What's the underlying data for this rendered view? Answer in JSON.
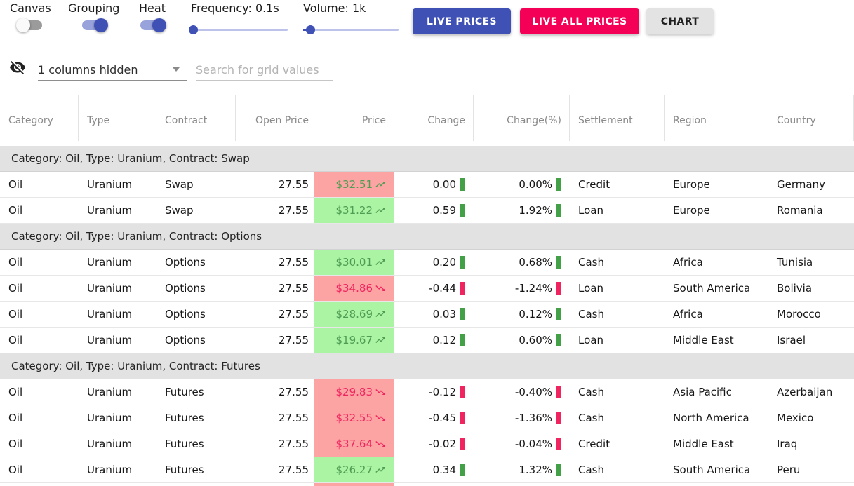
{
  "controls": {
    "toggles": [
      {
        "label": "Canvas",
        "on": false
      },
      {
        "label": "Grouping",
        "on": true
      },
      {
        "label": "Heat",
        "on": true
      }
    ],
    "sliders": [
      {
        "label": "Frequency: 0.1s",
        "percent": 2
      },
      {
        "label": "Volume: 1k",
        "percent": 7
      }
    ],
    "buttons": [
      {
        "label": "LIVE PRICES"
      },
      {
        "label": "LIVE ALL PRICES"
      },
      {
        "label": "CHART"
      }
    ]
  },
  "toolbar": {
    "hidden_columns_label": "1 columns hidden",
    "search_placeholder": "Search for grid values"
  },
  "colors": {
    "accent_primary": "#3f51b5",
    "accent_secondary": "#f50057",
    "heat_up_bg": "#aaf4a4",
    "heat_down_bg": "#fca3a3",
    "trend_up_text": "#4f9d53",
    "trend_down_text": "#f0245e",
    "bar_up": "#43a047",
    "bar_down": "#f0245e",
    "group_row_bg": "#e2e2e2"
  },
  "grid": {
    "columns": [
      {
        "label": "Category",
        "align": "left"
      },
      {
        "label": "Type",
        "align": "left"
      },
      {
        "label": "Contract",
        "align": "left"
      },
      {
        "label": "Open Price",
        "align": "right"
      },
      {
        "label": "Price",
        "align": "right"
      },
      {
        "label": "Change",
        "align": "right"
      },
      {
        "label": "Change(%)",
        "align": "right"
      },
      {
        "label": "Settlement",
        "align": "left"
      },
      {
        "label": "Region",
        "align": "left"
      },
      {
        "label": "Country",
        "align": "left"
      }
    ],
    "rows": [
      {
        "type": "group",
        "label": "Category: Oil, Type: Uranium, Contract: Swap"
      },
      {
        "type": "data",
        "category": "Oil",
        "commodity": "Uranium",
        "contract": "Swap",
        "open_price": "27.55",
        "price": "$32.51",
        "price_trend": "up",
        "price_heat": "red",
        "change": "0.00",
        "change_pct": "0.00%",
        "change_dir": "up",
        "settlement": "Credit",
        "region": "Europe",
        "country": "Germany"
      },
      {
        "type": "data",
        "category": "Oil",
        "commodity": "Uranium",
        "contract": "Swap",
        "open_price": "27.55",
        "price": "$31.22",
        "price_trend": "up",
        "price_heat": "green",
        "change": "0.59",
        "change_pct": "1.92%",
        "change_dir": "up",
        "settlement": "Loan",
        "region": "Europe",
        "country": "Romania"
      },
      {
        "type": "group",
        "label": "Category: Oil, Type: Uranium, Contract: Options"
      },
      {
        "type": "data",
        "category": "Oil",
        "commodity": "Uranium",
        "contract": "Options",
        "open_price": "27.55",
        "price": "$30.01",
        "price_trend": "up",
        "price_heat": "green",
        "change": "0.20",
        "change_pct": "0.68%",
        "change_dir": "up",
        "settlement": "Cash",
        "region": "Africa",
        "country": "Tunisia"
      },
      {
        "type": "data",
        "category": "Oil",
        "commodity": "Uranium",
        "contract": "Options",
        "open_price": "27.55",
        "price": "$34.86",
        "price_trend": "down",
        "price_heat": "red",
        "change": "-0.44",
        "change_pct": "-1.24%",
        "change_dir": "down",
        "settlement": "Loan",
        "region": "South America",
        "country": "Bolivia"
      },
      {
        "type": "data",
        "category": "Oil",
        "commodity": "Uranium",
        "contract": "Options",
        "open_price": "27.55",
        "price": "$28.69",
        "price_trend": "up",
        "price_heat": "green",
        "change": "0.03",
        "change_pct": "0.12%",
        "change_dir": "up",
        "settlement": "Cash",
        "region": "Africa",
        "country": "Morocco"
      },
      {
        "type": "data",
        "category": "Oil",
        "commodity": "Uranium",
        "contract": "Options",
        "open_price": "27.55",
        "price": "$19.67",
        "price_trend": "up",
        "price_heat": "green",
        "change": "0.12",
        "change_pct": "0.60%",
        "change_dir": "up",
        "settlement": "Loan",
        "region": "Middle East",
        "country": "Israel"
      },
      {
        "type": "group",
        "label": "Category: Oil, Type: Uranium, Contract: Futures"
      },
      {
        "type": "data",
        "category": "Oil",
        "commodity": "Uranium",
        "contract": "Futures",
        "open_price": "27.55",
        "price": "$29.83",
        "price_trend": "down",
        "price_heat": "red",
        "change": "-0.12",
        "change_pct": "-0.40%",
        "change_dir": "down",
        "settlement": "Cash",
        "region": "Asia Pacific",
        "country": "Azerbaijan"
      },
      {
        "type": "data",
        "category": "Oil",
        "commodity": "Uranium",
        "contract": "Futures",
        "open_price": "27.55",
        "price": "$32.55",
        "price_trend": "down",
        "price_heat": "red",
        "change": "-0.45",
        "change_pct": "-1.36%",
        "change_dir": "down",
        "settlement": "Cash",
        "region": "North America",
        "country": "Mexico"
      },
      {
        "type": "data",
        "category": "Oil",
        "commodity": "Uranium",
        "contract": "Futures",
        "open_price": "27.55",
        "price": "$37.64",
        "price_trend": "down",
        "price_heat": "red",
        "change": "-0.02",
        "change_pct": "-0.04%",
        "change_dir": "down",
        "settlement": "Credit",
        "region": "Middle East",
        "country": "Iraq"
      },
      {
        "type": "data",
        "category": "Oil",
        "commodity": "Uranium",
        "contract": "Futures",
        "open_price": "27.55",
        "price": "$26.27",
        "price_trend": "up",
        "price_heat": "green",
        "change": "0.34",
        "change_pct": "1.32%",
        "change_dir": "up",
        "settlement": "Cash",
        "region": "South America",
        "country": "Peru"
      },
      {
        "type": "partial",
        "price_heat": "red"
      }
    ]
  }
}
